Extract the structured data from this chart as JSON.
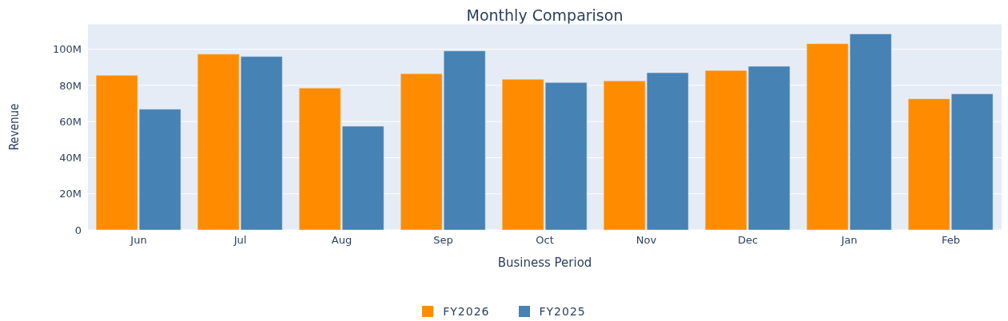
{
  "chart_data": {
    "type": "bar",
    "title": "Monthly Comparison",
    "xlabel": "Business Period",
    "ylabel": "Revenue",
    "categories": [
      "Jun",
      "Jul",
      "Aug",
      "Sep",
      "Oct",
      "Nov",
      "Dec",
      "Jan",
      "Feb"
    ],
    "series": [
      {
        "name": "FY2026",
        "color": "#ff8c00",
        "values": [
          85.6,
          97.3,
          78.5,
          86.5,
          83.4,
          82.5,
          88.3,
          103.1,
          72.6
        ]
      },
      {
        "name": "FY2025",
        "color": "#4682b4",
        "values": [
          66.8,
          96,
          57.4,
          99.1,
          81.6,
          87,
          90.6,
          108.5,
          75.3
        ]
      }
    ],
    "ylim": [
      0,
      114
    ],
    "yticks": [
      0,
      {
        "value": 20,
        "label": "20M"
      },
      {
        "value": 40,
        "label": "40M"
      },
      {
        "value": 60,
        "label": "60M"
      },
      {
        "value": 80,
        "label": "80M"
      },
      {
        "value": 100,
        "label": "100M"
      }
    ],
    "grid": "y",
    "legend": "bottom"
  }
}
